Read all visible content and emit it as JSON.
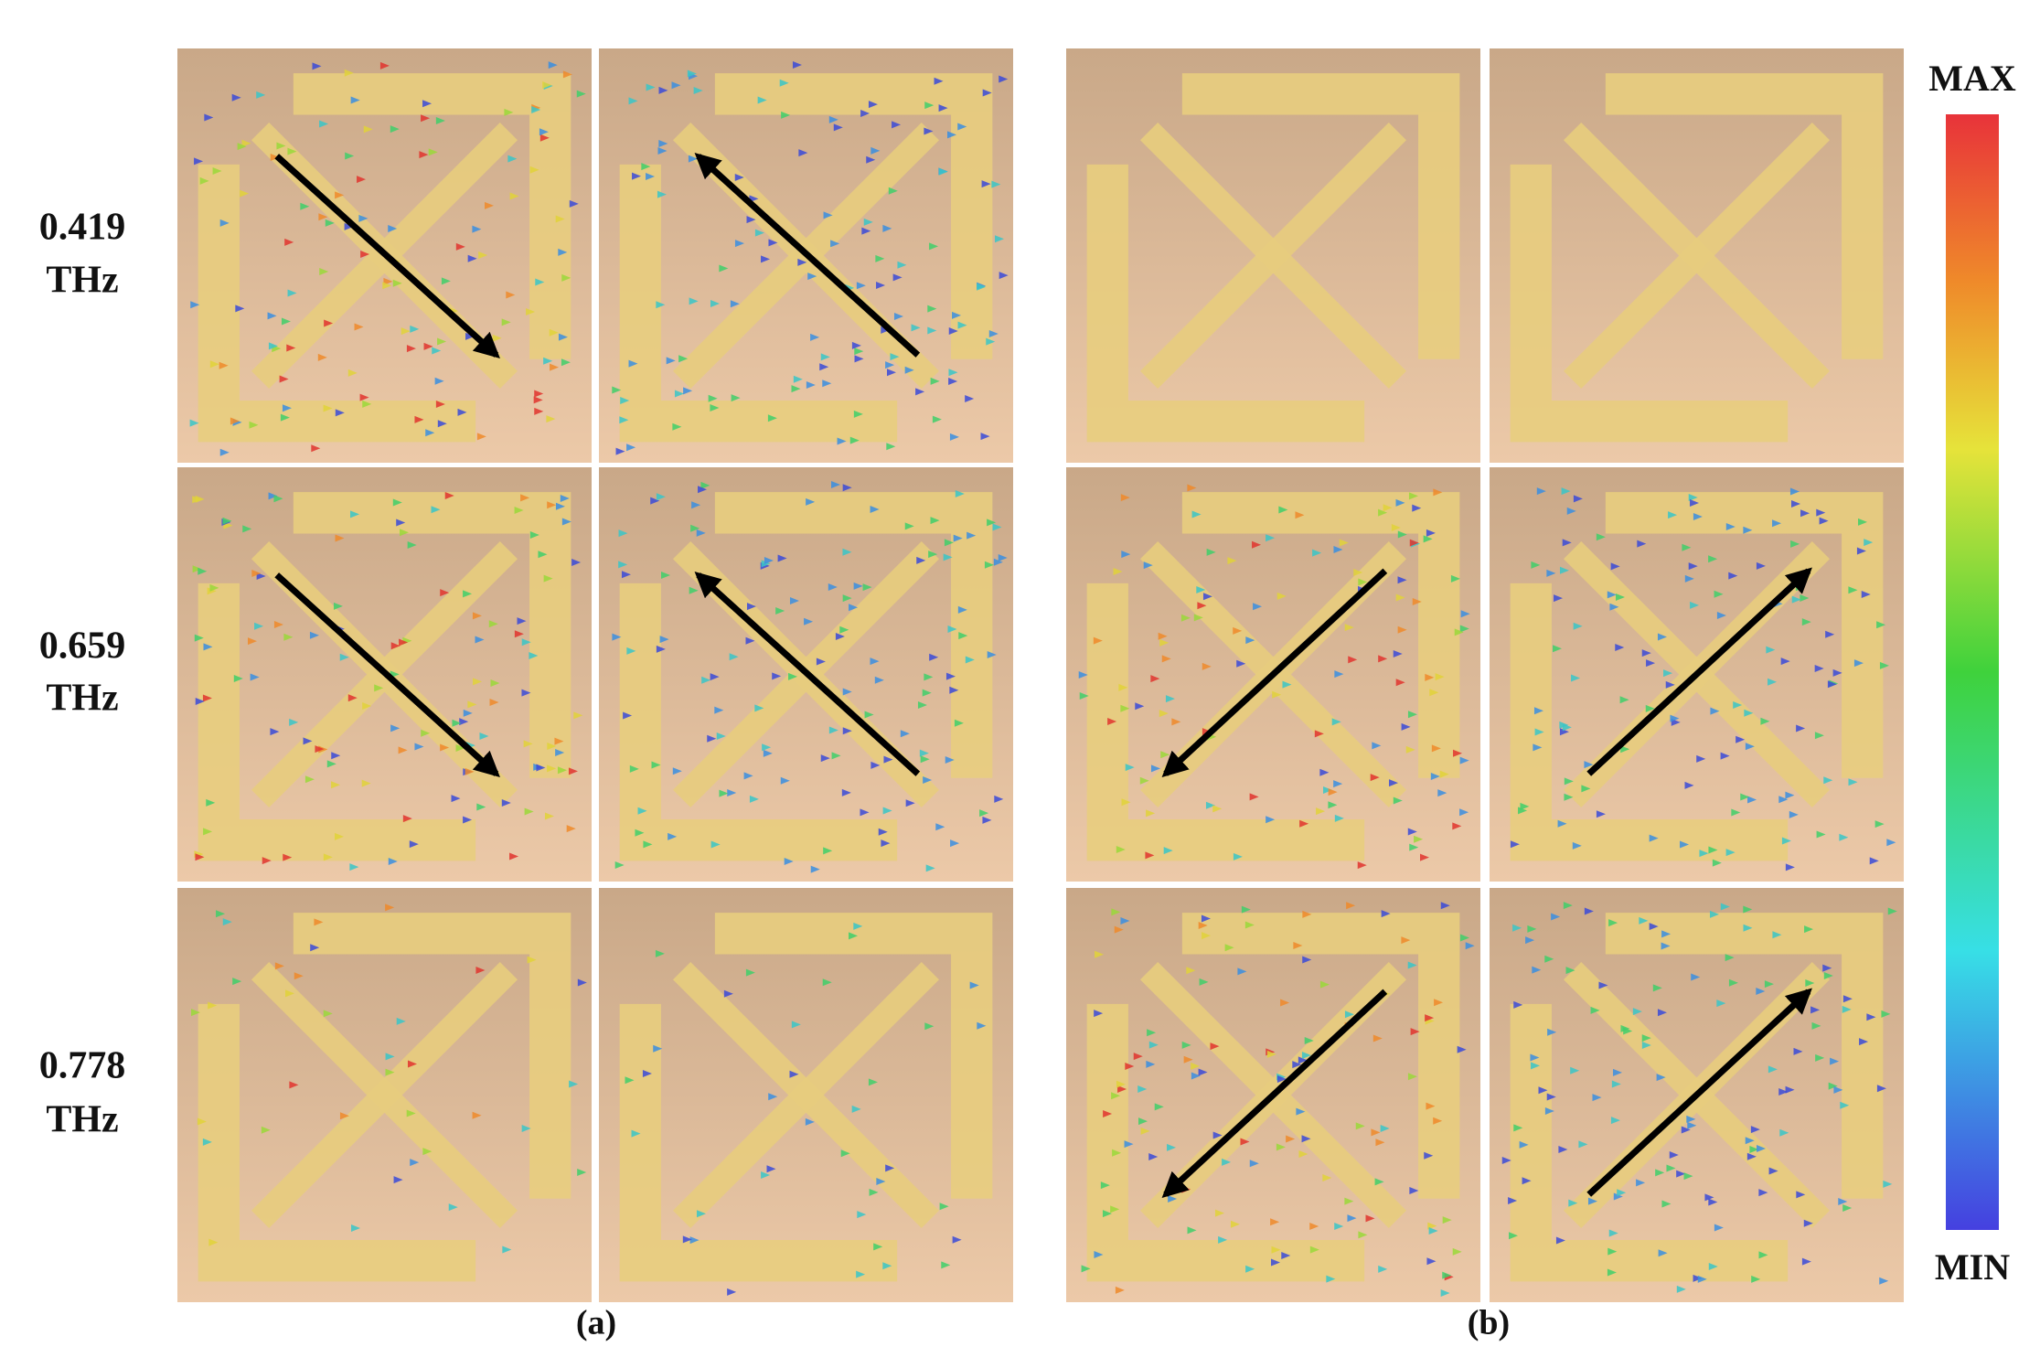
{
  "rows": [
    {
      "frequency": "0.419",
      "unit": "THz"
    },
    {
      "frequency": "0.659",
      "unit": "THz"
    },
    {
      "frequency": "0.778",
      "unit": "THz"
    }
  ],
  "panel_labels": {
    "a": "(a)",
    "b": "(b)"
  },
  "colorbar": {
    "max_label": "MAX",
    "min_label": "MIN"
  }
}
